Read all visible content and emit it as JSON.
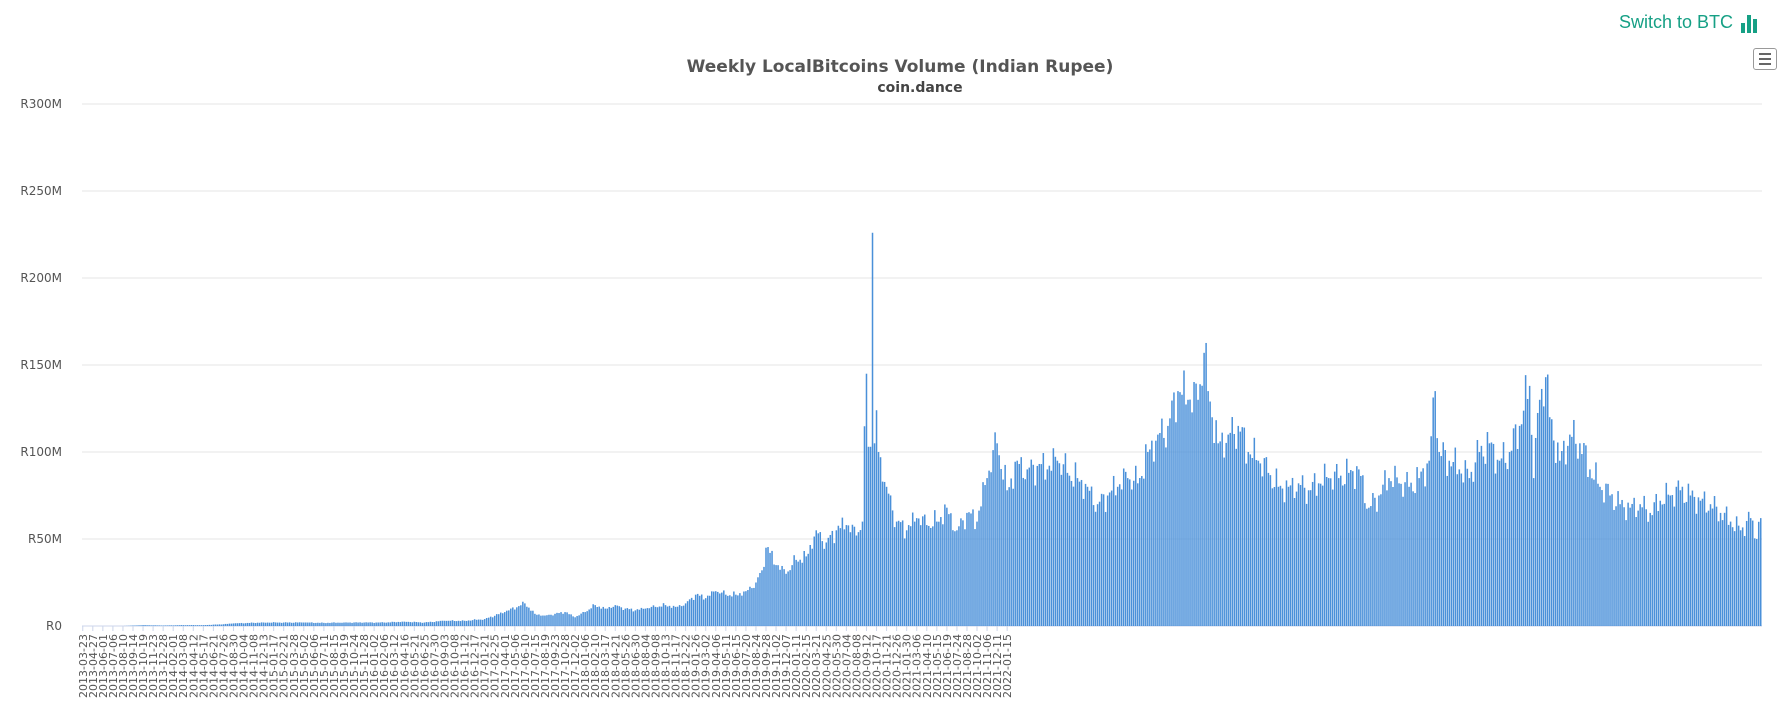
{
  "switch_link": {
    "label": "Switch to BTC",
    "icon": "bar-chart-icon",
    "color": "#16a085"
  },
  "menu": {
    "icon": "hamburger-menu-icon"
  },
  "chart_data": {
    "type": "bar",
    "title": "Weekly LocalBitcoins Volume (Indian Rupee)",
    "subtitle": "coin.dance",
    "xlabel": "",
    "ylabel": "",
    "ylim": [
      0,
      300
    ],
    "y_unit": "M",
    "y_prefix": "R",
    "y_ticks": [
      "R0",
      "R50M",
      "R100M",
      "R150M",
      "R200M",
      "R250M",
      "R300M"
    ],
    "x_tick_labels": [
      "2013-03-23",
      "2013-04-27",
      "2013-06-01",
      "2013-07-06",
      "2013-08-10",
      "2013-09-14",
      "2013-10-19",
      "2013-11-23",
      "2013-12-28",
      "2014-02-01",
      "2014-03-08",
      "2014-04-12",
      "2014-05-17",
      "2014-06-21",
      "2014-07-26",
      "2014-08-30",
      "2014-10-04",
      "2014-11-08",
      "2014-12-13",
      "2015-01-17",
      "2015-02-21",
      "2015-03-28",
      "2015-05-02",
      "2015-06-06",
      "2015-07-11",
      "2015-08-15",
      "2015-09-19",
      "2015-10-24",
      "2015-11-28",
      "2016-01-02",
      "2016-02-06",
      "2016-03-12",
      "2016-04-16",
      "2016-05-21",
      "2016-06-25",
      "2016-07-30",
      "2016-09-03",
      "2016-10-08",
      "2016-11-12",
      "2016-12-17",
      "2017-01-21",
      "2017-02-25",
      "2017-04-01",
      "2017-05-06",
      "2017-06-10",
      "2017-07-15",
      "2017-08-19",
      "2017-09-23",
      "2017-10-28",
      "2017-12-02",
      "2018-01-06",
      "2018-02-10",
      "2018-03-17",
      "2018-04-21",
      "2018-05-26",
      "2018-06-30",
      "2018-08-04",
      "2018-09-08",
      "2018-10-13",
      "2018-11-17",
      "2018-12-22",
      "2019-01-26",
      "2019-03-02",
      "2019-04-06",
      "2019-05-11",
      "2019-06-15",
      "2019-07-20",
      "2019-08-24",
      "2019-09-28",
      "2019-11-02",
      "2019-12-07",
      "2020-01-11",
      "2020-02-15",
      "2020-03-21",
      "2020-04-25",
      "2020-05-30",
      "2020-07-04",
      "2020-08-08",
      "2020-09-12",
      "2020-10-17",
      "2020-11-21",
      "2020-12-26",
      "2021-01-30",
      "2021-03-06",
      "2021-04-10",
      "2021-05-15",
      "2021-06-19",
      "2021-07-24",
      "2021-08-28",
      "2021-10-02",
      "2021-11-06",
      "2021-12-11",
      "2022-01-15"
    ],
    "anchors": [
      [
        0,
        0
      ],
      [
        20,
        0
      ],
      [
        30,
        0.5
      ],
      [
        40,
        0.3
      ],
      [
        50,
        0.5
      ],
      [
        60,
        0.5
      ],
      [
        70,
        1
      ],
      [
        75,
        1.5
      ],
      [
        90,
        2
      ],
      [
        100,
        2
      ],
      [
        110,
        2
      ],
      [
        120,
        1.8
      ],
      [
        130,
        2
      ],
      [
        140,
        2
      ],
      [
        150,
        2
      ],
      [
        160,
        2.5
      ],
      [
        170,
        2
      ],
      [
        180,
        3
      ],
      [
        190,
        3
      ],
      [
        200,
        4
      ],
      [
        210,
        8
      ],
      [
        220,
        13
      ],
      [
        225,
        7
      ],
      [
        230,
        6
      ],
      [
        235,
        7
      ],
      [
        240,
        8
      ],
      [
        245,
        5
      ],
      [
        250,
        8
      ],
      [
        255,
        12
      ],
      [
        260,
        10
      ],
      [
        265,
        12
      ],
      [
        270,
        10
      ],
      [
        275,
        9
      ],
      [
        280,
        10
      ],
      [
        285,
        11
      ],
      [
        290,
        12
      ],
      [
        295,
        11
      ],
      [
        300,
        13
      ],
      [
        305,
        18
      ],
      [
        310,
        16
      ],
      [
        315,
        20
      ],
      [
        320,
        18
      ],
      [
        325,
        18
      ],
      [
        330,
        20
      ],
      [
        335,
        25
      ],
      [
        338,
        32
      ],
      [
        340,
        45
      ],
      [
        342,
        42
      ],
      [
        345,
        35
      ],
      [
        350,
        30
      ],
      [
        355,
        38
      ],
      [
        360,
        40
      ],
      [
        365,
        55
      ],
      [
        370,
        48
      ],
      [
        375,
        55
      ],
      [
        380,
        58
      ],
      [
        385,
        52
      ],
      [
        388,
        60
      ],
      [
        390,
        145
      ],
      [
        391,
        103
      ],
      [
        392,
        103
      ],
      [
        393,
        226
      ],
      [
        394,
        105
      ],
      [
        395,
        124
      ],
      [
        396,
        100
      ],
      [
        397,
        97
      ],
      [
        400,
        80
      ],
      [
        405,
        60
      ],
      [
        410,
        55
      ],
      [
        415,
        62
      ],
      [
        420,
        58
      ],
      [
        425,
        60
      ],
      [
        430,
        68
      ],
      [
        435,
        55
      ],
      [
        440,
        65
      ],
      [
        445,
        60
      ],
      [
        450,
        85
      ],
      [
        455,
        105
      ],
      [
        460,
        78
      ],
      [
        465,
        95
      ],
      [
        470,
        90
      ],
      [
        475,
        92
      ],
      [
        480,
        90
      ],
      [
        485,
        95
      ],
      [
        490,
        88
      ],
      [
        495,
        85
      ],
      [
        500,
        80
      ],
      [
        505,
        70
      ],
      [
        510,
        75
      ],
      [
        515,
        80
      ],
      [
        520,
        85
      ],
      [
        525,
        82
      ],
      [
        530,
        100
      ],
      [
        535,
        110
      ],
      [
        540,
        115
      ],
      [
        545,
        135
      ],
      [
        550,
        130
      ],
      [
        555,
        130
      ],
      [
        558,
        157
      ],
      [
        560,
        135
      ],
      [
        565,
        105
      ],
      [
        570,
        110
      ],
      [
        575,
        115
      ],
      [
        580,
        100
      ],
      [
        585,
        95
      ],
      [
        590,
        88
      ],
      [
        595,
        80
      ],
      [
        600,
        80
      ],
      [
        605,
        82
      ],
      [
        610,
        78
      ],
      [
        615,
        82
      ],
      [
        620,
        85
      ],
      [
        625,
        85
      ],
      [
        630,
        88
      ],
      [
        635,
        90
      ],
      [
        640,
        68
      ],
      [
        645,
        75
      ],
      [
        650,
        85
      ],
      [
        655,
        82
      ],
      [
        660,
        80
      ],
      [
        665,
        85
      ],
      [
        670,
        95
      ],
      [
        673,
        135
      ],
      [
        675,
        100
      ],
      [
        680,
        95
      ],
      [
        685,
        90
      ],
      [
        690,
        85
      ],
      [
        695,
        100
      ],
      [
        700,
        105
      ],
      [
        705,
        95
      ],
      [
        710,
        100
      ],
      [
        715,
        115
      ],
      [
        720,
        138
      ],
      [
        722,
        85
      ],
      [
        725,
        130
      ],
      [
        728,
        143
      ],
      [
        730,
        120
      ],
      [
        735,
        95
      ],
      [
        740,
        110
      ],
      [
        745,
        105
      ],
      [
        750,
        90
      ],
      [
        755,
        80
      ],
      [
        760,
        75
      ],
      [
        765,
        70
      ],
      [
        770,
        68
      ],
      [
        775,
        70
      ],
      [
        780,
        65
      ],
      [
        785,
        72
      ],
      [
        790,
        75
      ],
      [
        795,
        78
      ],
      [
        800,
        75
      ],
      [
        805,
        72
      ],
      [
        810,
        70
      ],
      [
        815,
        65
      ],
      [
        820,
        60
      ],
      [
        825,
        55
      ],
      [
        830,
        62
      ],
      [
        833,
        50
      ],
      [
        835,
        62
      ]
    ],
    "bar_color": "#4a90d9",
    "grid": true,
    "legend": "none"
  }
}
